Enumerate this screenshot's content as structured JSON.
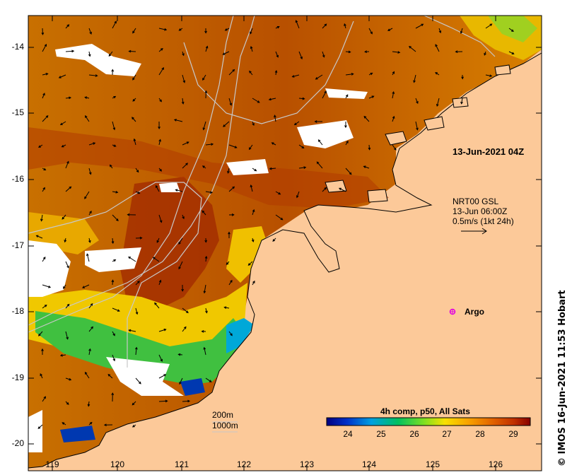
{
  "map": {
    "timestamp": "13-Jun-2021 04Z",
    "current_product": {
      "name": "NRT00 GSL",
      "time": "13-Jun 06:00Z",
      "scale": "0.5m/s (1kt 24h)"
    },
    "argo_label": "Argo",
    "isobaths": [
      "200m",
      "1000m"
    ],
    "latitude_ticks": [
      "-14",
      "-15",
      "-16",
      "-17",
      "-18",
      "-19",
      "-20"
    ],
    "longitude_ticks": [
      "119",
      "120",
      "121",
      "122",
      "123",
      "124",
      "125",
      "126"
    ],
    "credit": "© IMOS 16-Jun-2021 11:53 Hobart",
    "colors": {
      "land": "#fcc999",
      "cloud": "#ffffff",
      "arrow": "#000000",
      "argo": "#e000e0",
      "isobath": "#c8c8c8"
    }
  },
  "colorbar": {
    "title": "4h comp, p50, All Sats",
    "ticks": [
      "24",
      "25",
      "26",
      "27",
      "28",
      "29"
    ],
    "colors": [
      "#000080",
      "#0030c8",
      "#00a0e0",
      "#00c060",
      "#80e020",
      "#f8e000",
      "#f8a000",
      "#e06000",
      "#c03000",
      "#880000"
    ]
  }
}
